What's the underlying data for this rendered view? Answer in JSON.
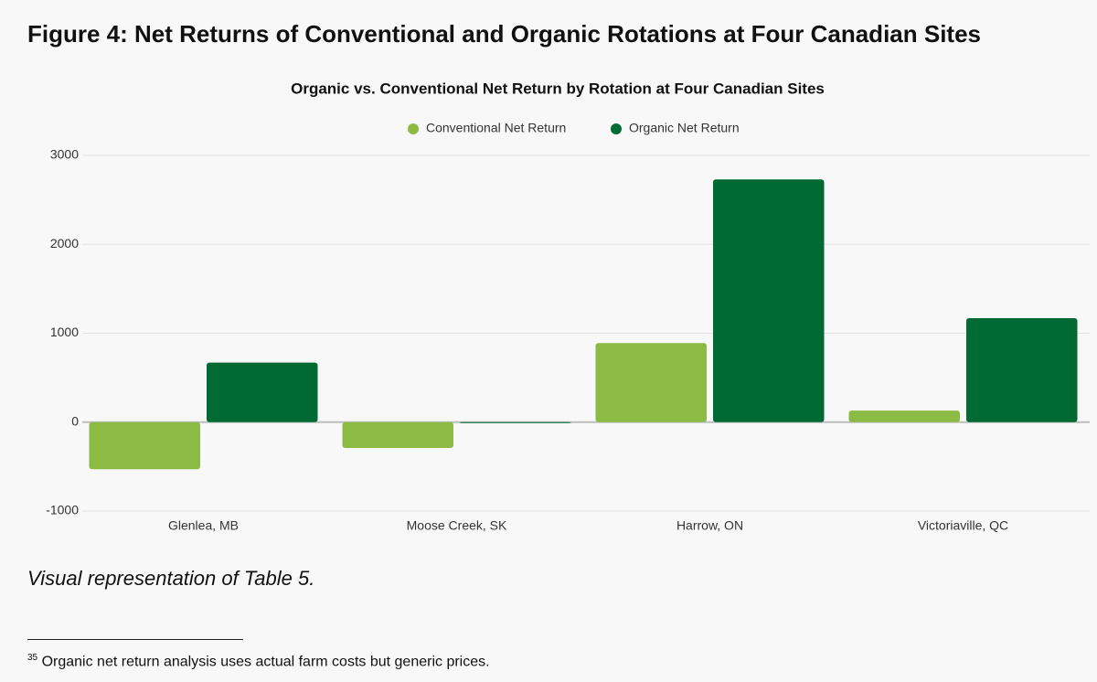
{
  "header": {
    "title": "Figure 4: Net Returns of Conventional and Organic Rotations at Four Canadian Sites"
  },
  "chart_data": {
    "type": "bar",
    "title": "Organic vs. Conventional Net Return by Rotation at Four Canadian Sites",
    "categories": [
      "Glenlea, MB",
      "Moose Creek, SK",
      "Harrow, ON",
      "Victoriaville, QC"
    ],
    "series": [
      {
        "name": "Conventional Net Return",
        "color": "#8bbb45",
        "values": [
          -530,
          -290,
          890,
          130
        ]
      },
      {
        "name": "Organic Net Return",
        "color": "#006a35",
        "values": [
          670,
          -10,
          2730,
          1170
        ]
      }
    ],
    "ylim": [
      -1000,
      3000
    ],
    "yticks": [
      -1000,
      0,
      1000,
      2000,
      3000
    ],
    "grid": true,
    "legend": "top"
  },
  "caption": "Visual representation of  Table 5.",
  "footnote": {
    "marker": "35",
    "text": "Organic net return analysis uses actual farm costs but generic prices."
  }
}
